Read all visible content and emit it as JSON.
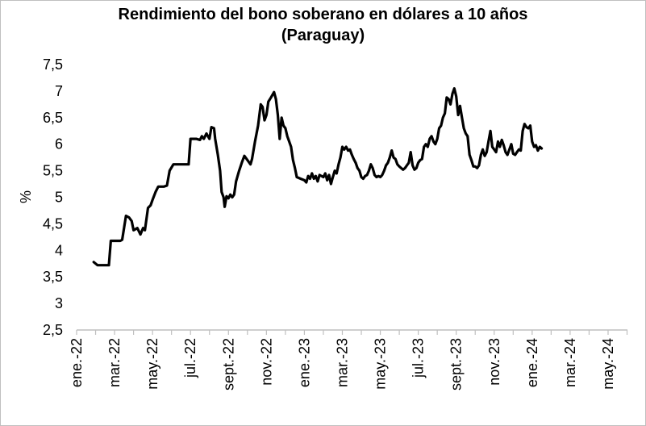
{
  "chart_data": {
    "type": "line",
    "title": "Rendimiento del bono soberano en dólares a 10 años",
    "subtitle": "(Paraguay)",
    "ylabel": "%",
    "xlabel": "",
    "ylim": [
      2.5,
      7.5
    ],
    "yticks": [
      "2,5",
      "3",
      "3,5",
      "4",
      "4,5",
      "5",
      "5,5",
      "6",
      "6,5",
      "7",
      "7,5"
    ],
    "xticks": [
      "ene.-22",
      "mar.-22",
      "may.-22",
      "jul.-22",
      "sept.-22",
      "nov.-22",
      "ene.-23",
      "mar.-23",
      "may.-23",
      "jul.-23",
      "sept.-23",
      "nov.-23",
      "ene.-24",
      "mar.-24",
      "may.-24"
    ],
    "grid": false,
    "series": [
      {
        "name": "",
        "color": "#000000",
        "points": [
          [
            0.45,
            3.78
          ],
          [
            0.55,
            3.72
          ],
          [
            0.7,
            3.72
          ],
          [
            0.85,
            3.72
          ],
          [
            0.9,
            4.18
          ],
          [
            1.0,
            4.18
          ],
          [
            1.15,
            4.18
          ],
          [
            1.2,
            4.2
          ],
          [
            1.3,
            4.65
          ],
          [
            1.38,
            4.62
          ],
          [
            1.45,
            4.55
          ],
          [
            1.5,
            4.38
          ],
          [
            1.6,
            4.42
          ],
          [
            1.68,
            4.3
          ],
          [
            1.75,
            4.42
          ],
          [
            1.8,
            4.38
          ],
          [
            1.88,
            4.8
          ],
          [
            1.95,
            4.85
          ],
          [
            2.0,
            4.95
          ],
          [
            2.08,
            5.1
          ],
          [
            2.15,
            5.2
          ],
          [
            2.3,
            5.2
          ],
          [
            2.38,
            5.22
          ],
          [
            2.45,
            5.5
          ],
          [
            2.55,
            5.62
          ],
          [
            2.7,
            5.62
          ],
          [
            2.85,
            5.62
          ],
          [
            2.95,
            5.62
          ],
          [
            3.0,
            6.1
          ],
          [
            3.15,
            6.1
          ],
          [
            3.25,
            6.08
          ],
          [
            3.3,
            6.15
          ],
          [
            3.35,
            6.1
          ],
          [
            3.42,
            6.2
          ],
          [
            3.5,
            6.1
          ],
          [
            3.55,
            6.32
          ],
          [
            3.62,
            6.3
          ],
          [
            3.65,
            6.1
          ],
          [
            3.72,
            5.8
          ],
          [
            3.78,
            5.5
          ],
          [
            3.82,
            5.1
          ],
          [
            3.87,
            5.0
          ],
          [
            3.9,
            4.82
          ],
          [
            3.95,
            5.02
          ],
          [
            4.0,
            4.98
          ],
          [
            4.05,
            5.05
          ],
          [
            4.1,
            5.0
          ],
          [
            4.15,
            5.05
          ],
          [
            4.2,
            5.3
          ],
          [
            4.28,
            5.5
          ],
          [
            4.35,
            5.65
          ],
          [
            4.42,
            5.78
          ],
          [
            4.5,
            5.7
          ],
          [
            4.58,
            5.62
          ],
          [
            4.62,
            5.72
          ],
          [
            4.7,
            6.05
          ],
          [
            4.78,
            6.35
          ],
          [
            4.85,
            6.75
          ],
          [
            4.9,
            6.7
          ],
          [
            4.95,
            6.45
          ],
          [
            5.0,
            6.55
          ],
          [
            5.05,
            6.8
          ],
          [
            5.12,
            6.88
          ],
          [
            5.2,
            6.98
          ],
          [
            5.25,
            6.85
          ],
          [
            5.3,
            6.55
          ],
          [
            5.35,
            6.1
          ],
          [
            5.4,
            6.5
          ],
          [
            5.45,
            6.35
          ],
          [
            5.5,
            6.3
          ],
          [
            5.55,
            6.15
          ],
          [
            5.6,
            6.05
          ],
          [
            5.65,
            5.95
          ],
          [
            5.7,
            5.7
          ],
          [
            5.75,
            5.55
          ],
          [
            5.8,
            5.38
          ],
          [
            5.9,
            5.35
          ],
          [
            6.0,
            5.32
          ],
          [
            6.05,
            5.28
          ],
          [
            6.1,
            5.4
          ],
          [
            6.15,
            5.35
          ],
          [
            6.2,
            5.45
          ],
          [
            6.25,
            5.35
          ],
          [
            6.3,
            5.4
          ],
          [
            6.35,
            5.3
          ],
          [
            6.4,
            5.42
          ],
          [
            6.5,
            5.38
          ],
          [
            6.55,
            5.45
          ],
          [
            6.6,
            5.32
          ],
          [
            6.65,
            5.42
          ],
          [
            6.7,
            5.25
          ],
          [
            6.75,
            5.38
          ],
          [
            6.8,
            5.5
          ],
          [
            6.85,
            5.45
          ],
          [
            6.9,
            5.62
          ],
          [
            6.95,
            5.75
          ],
          [
            7.0,
            5.95
          ],
          [
            7.05,
            5.9
          ],
          [
            7.1,
            5.95
          ],
          [
            7.15,
            5.88
          ],
          [
            7.2,
            5.9
          ],
          [
            7.25,
            5.8
          ],
          [
            7.3,
            5.72
          ],
          [
            7.35,
            5.65
          ],
          [
            7.4,
            5.55
          ],
          [
            7.45,
            5.5
          ],
          [
            7.5,
            5.38
          ],
          [
            7.55,
            5.35
          ],
          [
            7.6,
            5.4
          ],
          [
            7.65,
            5.42
          ],
          [
            7.7,
            5.5
          ],
          [
            7.75,
            5.62
          ],
          [
            7.8,
            5.55
          ],
          [
            7.85,
            5.42
          ],
          [
            7.9,
            5.38
          ],
          [
            7.95,
            5.4
          ],
          [
            8.0,
            5.38
          ],
          [
            8.05,
            5.42
          ],
          [
            8.1,
            5.5
          ],
          [
            8.15,
            5.6
          ],
          [
            8.2,
            5.65
          ],
          [
            8.25,
            5.75
          ],
          [
            8.3,
            5.88
          ],
          [
            8.35,
            5.75
          ],
          [
            8.4,
            5.72
          ],
          [
            8.45,
            5.62
          ],
          [
            8.5,
            5.58
          ],
          [
            8.55,
            5.55
          ],
          [
            8.6,
            5.52
          ],
          [
            8.65,
            5.55
          ],
          [
            8.7,
            5.6
          ],
          [
            8.75,
            5.65
          ],
          [
            8.8,
            5.85
          ],
          [
            8.85,
            5.6
          ],
          [
            8.9,
            5.52
          ],
          [
            8.95,
            5.55
          ],
          [
            9.0,
            5.65
          ],
          [
            9.05,
            5.7
          ],
          [
            9.1,
            5.72
          ],
          [
            9.15,
            5.95
          ],
          [
            9.2,
            6.0
          ],
          [
            9.25,
            5.95
          ],
          [
            9.3,
            6.1
          ],
          [
            9.35,
            6.15
          ],
          [
            9.4,
            6.05
          ],
          [
            9.45,
            6.0
          ],
          [
            9.5,
            6.1
          ],
          [
            9.55,
            6.3
          ],
          [
            9.6,
            6.35
          ],
          [
            9.65,
            6.5
          ],
          [
            9.7,
            6.58
          ],
          [
            9.75,
            6.88
          ],
          [
            9.8,
            6.85
          ],
          [
            9.85,
            6.75
          ],
          [
            9.9,
            6.95
          ],
          [
            9.95,
            7.05
          ],
          [
            10.0,
            6.9
          ],
          [
            10.05,
            6.55
          ],
          [
            10.1,
            6.72
          ],
          [
            10.15,
            6.5
          ],
          [
            10.2,
            6.3
          ],
          [
            10.25,
            6.2
          ],
          [
            10.3,
            6.15
          ],
          [
            10.35,
            5.8
          ],
          [
            10.4,
            5.7
          ],
          [
            10.45,
            5.58
          ],
          [
            10.5,
            5.58
          ],
          [
            10.55,
            5.55
          ],
          [
            10.6,
            5.6
          ],
          [
            10.65,
            5.8
          ],
          [
            10.7,
            5.9
          ],
          [
            10.75,
            5.78
          ],
          [
            10.8,
            5.85
          ],
          [
            10.85,
            6.05
          ],
          [
            10.9,
            6.25
          ],
          [
            10.95,
            5.95
          ],
          [
            11.0,
            5.9
          ],
          [
            11.05,
            5.85
          ],
          [
            11.1,
            6.05
          ],
          [
            11.15,
            5.95
          ],
          [
            11.2,
            6.08
          ],
          [
            11.25,
            5.98
          ],
          [
            11.3,
            5.85
          ],
          [
            11.35,
            5.8
          ],
          [
            11.4,
            5.9
          ],
          [
            11.45,
            6.0
          ],
          [
            11.5,
            5.82
          ],
          [
            11.55,
            5.8
          ],
          [
            11.6,
            5.85
          ],
          [
            11.65,
            5.9
          ],
          [
            11.7,
            5.88
          ],
          [
            11.75,
            6.25
          ],
          [
            11.8,
            6.38
          ],
          [
            11.85,
            6.32
          ],
          [
            11.9,
            6.3
          ],
          [
            11.95,
            6.35
          ],
          [
            12.0,
            6.05
          ],
          [
            12.05,
            5.95
          ],
          [
            12.1,
            5.98
          ],
          [
            12.15,
            5.88
          ],
          [
            12.2,
            5.95
          ],
          [
            12.25,
            5.92
          ]
        ]
      }
    ]
  }
}
